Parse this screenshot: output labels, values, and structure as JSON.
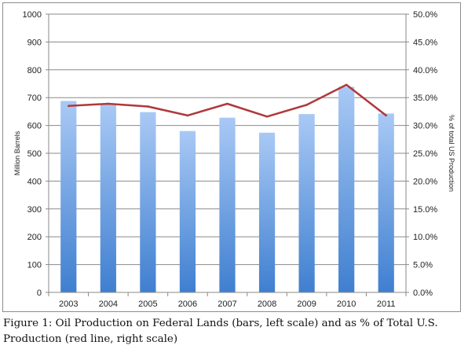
{
  "chart_data": {
    "type": "bar",
    "categories": [
      "2003",
      "2004",
      "2005",
      "2006",
      "2007",
      "2008",
      "2009",
      "2010",
      "2011"
    ],
    "series": [
      {
        "type": "bar",
        "axis": "left",
        "values": [
          688,
          677,
          648,
          580,
          628,
          574,
          641,
          739,
          643
        ],
        "color": "#4f8fd8"
      },
      {
        "type": "line",
        "axis": "right",
        "values": [
          33.5,
          33.9,
          33.4,
          31.8,
          33.9,
          31.6,
          33.7,
          37.3,
          31.8
        ],
        "color": "#b0383a"
      }
    ],
    "ylabel": "Million Barrels",
    "ylabel_right": "% of total US Production",
    "ylim": [
      0,
      1000
    ],
    "ylim_right": [
      0,
      50
    ],
    "yticks_left": [
      "0",
      "100",
      "200",
      "300",
      "400",
      "500",
      "600",
      "700",
      "800",
      "900",
      "1000"
    ],
    "yticks_right": [
      "0.0%",
      "5.0%",
      "10.0%",
      "15.0%",
      "20.0%",
      "25.0%",
      "30.0%",
      "35.0%",
      "40.0%",
      "45.0%",
      "50.0%"
    ],
    "grid": true,
    "caption": "Figure 1: Oil Production on Federal Lands (bars, left scale) and as % of Total U.S. Production (red line, right scale)"
  }
}
